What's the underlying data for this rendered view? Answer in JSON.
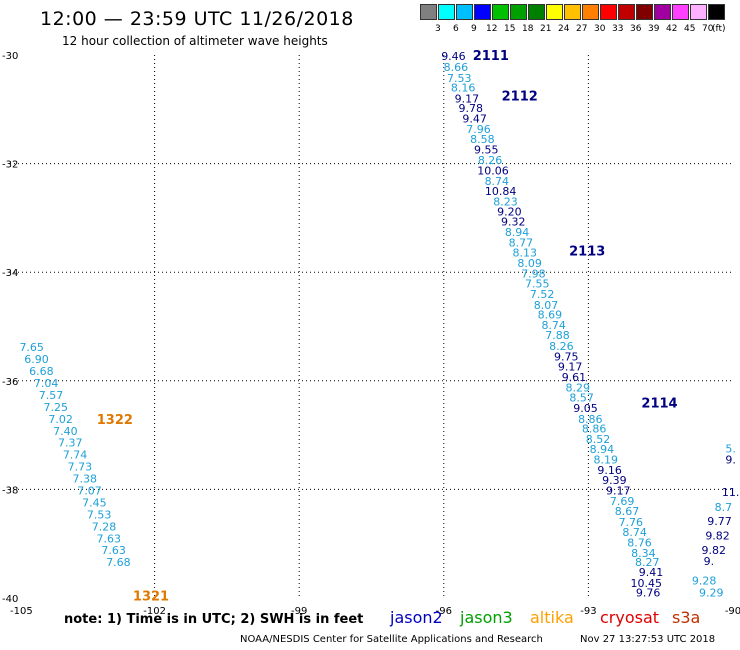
{
  "header": {
    "title": "12:00 — 23:59 UTC 11/26/2018",
    "subtitle": "12 hour collection of altimeter wave heights"
  },
  "legend": {
    "unit": "(ft)",
    "bins": [
      {
        "label": "3",
        "color": "#808080"
      },
      {
        "label": "6",
        "color": "#00ffff"
      },
      {
        "label": "9",
        "color": "#00bfff"
      },
      {
        "label": "12",
        "color": "#0000ff"
      },
      {
        "label": "15",
        "color": "#00c000"
      },
      {
        "label": "18",
        "color": "#00a000"
      },
      {
        "label": "21",
        "color": "#008000"
      },
      {
        "label": "24",
        "color": "#ffff00"
      },
      {
        "label": "27",
        "color": "#ffc000"
      },
      {
        "label": "30",
        "color": "#ff8000"
      },
      {
        "label": "33",
        "color": "#ff0000"
      },
      {
        "label": "36",
        "color": "#c00000"
      },
      {
        "label": "39",
        "color": "#800000"
      },
      {
        "label": "42",
        "color": "#a000a0"
      },
      {
        "label": "45",
        "color": "#ff40ff"
      },
      {
        "label": "70",
        "color": "#ffb0ff"
      },
      {
        "label": "",
        "color": "#000000"
      }
    ]
  },
  "map": {
    "lon_ticks": [
      "-105",
      "-102",
      "-99",
      "-96",
      "-93",
      "-90"
    ],
    "lat_ticks": [
      "-30",
      "-32",
      "-34",
      "-36",
      "-38",
      "-40"
    ],
    "lon_range": [
      -105,
      -90
    ],
    "lat_range": [
      -40,
      -30
    ],
    "grid": "dotted"
  },
  "tracks": [
    {
      "satellite": "jason2",
      "color_dark": "#000080",
      "color_light": "#1ea0d8",
      "passes": [
        {
          "label": "2111",
          "lon": -95.4,
          "lat": -30.0
        },
        {
          "label": "2112",
          "lon": -94.8,
          "lat": -30.75
        },
        {
          "label": "2113",
          "lon": -93.4,
          "lat": -33.6
        },
        {
          "label": "2114",
          "lon": -91.9,
          "lat": -36.4
        }
      ],
      "points": [
        {
          "v": "9.46",
          "lon": -95.8,
          "lat": -30.02,
          "d": 1
        },
        {
          "v": "8.66",
          "lon": -95.75,
          "lat": -30.22,
          "d": 0
        },
        {
          "v": "7.53",
          "lon": -95.68,
          "lat": -30.42,
          "d": 0
        },
        {
          "v": "8.16",
          "lon": -95.6,
          "lat": -30.6,
          "d": 0
        },
        {
          "v": "9.17",
          "lon": -95.52,
          "lat": -30.8,
          "d": 1
        },
        {
          "v": "9.78",
          "lon": -95.44,
          "lat": -30.98,
          "d": 1
        },
        {
          "v": "9.47",
          "lon": -95.36,
          "lat": -31.17,
          "d": 1
        },
        {
          "v": "7.96",
          "lon": -95.28,
          "lat": -31.36,
          "d": 0
        },
        {
          "v": "8.58",
          "lon": -95.2,
          "lat": -31.55,
          "d": 0
        },
        {
          "v": "9.55",
          "lon": -95.12,
          "lat": -31.74,
          "d": 1
        },
        {
          "v": "8.26",
          "lon": -95.04,
          "lat": -31.93,
          "d": 0
        },
        {
          "v": "10.06",
          "lon": -94.98,
          "lat": -32.13,
          "d": 1
        },
        {
          "v": "8.74",
          "lon": -94.9,
          "lat": -32.32,
          "d": 0
        },
        {
          "v": "10.84",
          "lon": -94.82,
          "lat": -32.5,
          "d": 1
        },
        {
          "v": "8.23",
          "lon": -94.72,
          "lat": -32.7,
          "d": 0
        },
        {
          "v": "9.20",
          "lon": -94.64,
          "lat": -32.88,
          "d": 1
        },
        {
          "v": "9.32",
          "lon": -94.56,
          "lat": -33.07,
          "d": 1
        },
        {
          "v": "8.94",
          "lon": -94.48,
          "lat": -33.26,
          "d": 0
        },
        {
          "v": "8.77",
          "lon": -94.4,
          "lat": -33.45,
          "d": 0
        },
        {
          "v": "8.13",
          "lon": -94.32,
          "lat": -33.64,
          "d": 0
        },
        {
          "v": "8.09",
          "lon": -94.22,
          "lat": -33.83,
          "d": 0
        },
        {
          "v": "7.98",
          "lon": -94.14,
          "lat": -34.02,
          "d": 0
        },
        {
          "v": "7.55",
          "lon": -94.06,
          "lat": -34.21,
          "d": 0
        },
        {
          "v": "7.52",
          "lon": -93.96,
          "lat": -34.4,
          "d": 0
        },
        {
          "v": "8.07",
          "lon": -93.88,
          "lat": -34.6,
          "d": 0
        },
        {
          "v": "8.69",
          "lon": -93.8,
          "lat": -34.78,
          "d": 0
        },
        {
          "v": "8.74",
          "lon": -93.72,
          "lat": -34.97,
          "d": 0
        },
        {
          "v": "7.88",
          "lon": -93.64,
          "lat": -35.16,
          "d": 0
        },
        {
          "v": "8.26",
          "lon": -93.56,
          "lat": -35.36,
          "d": 0
        },
        {
          "v": "9.75",
          "lon": -93.46,
          "lat": -35.55,
          "d": 1
        },
        {
          "v": "9.17",
          "lon": -93.38,
          "lat": -35.74,
          "d": 1
        },
        {
          "v": "9.61",
          "lon": -93.3,
          "lat": -35.93,
          "d": 1
        },
        {
          "v": "8.29",
          "lon": -93.22,
          "lat": -36.12,
          "d": 0
        },
        {
          "v": "8.57",
          "lon": -93.14,
          "lat": -36.31,
          "d": 0
        },
        {
          "v": "9.05",
          "lon": -93.06,
          "lat": -36.5,
          "d": 1
        },
        {
          "v": "8.86",
          "lon": -92.96,
          "lat": -36.7,
          "d": 0
        },
        {
          "v": "8.86",
          "lon": -92.88,
          "lat": -36.88,
          "d": 0
        },
        {
          "v": "8.52",
          "lon": -92.8,
          "lat": -37.07,
          "d": 0
        },
        {
          "v": "8.94",
          "lon": -92.72,
          "lat": -37.26,
          "d": 0
        },
        {
          "v": "8.19",
          "lon": -92.64,
          "lat": -37.45,
          "d": 0
        },
        {
          "v": "9.16",
          "lon": -92.56,
          "lat": -37.64,
          "d": 1
        },
        {
          "v": "9.39",
          "lon": -92.46,
          "lat": -37.83,
          "d": 1
        },
        {
          "v": "9.17",
          "lon": -92.38,
          "lat": -38.02,
          "d": 1
        },
        {
          "v": "7.69",
          "lon": -92.3,
          "lat": -38.21,
          "d": 0
        },
        {
          "v": "8.67",
          "lon": -92.2,
          "lat": -38.4,
          "d": 0
        },
        {
          "v": "7.76",
          "lon": -92.12,
          "lat": -38.6,
          "d": 0
        },
        {
          "v": "8.74",
          "lon": -92.04,
          "lat": -38.78,
          "d": 0
        },
        {
          "v": "8.76",
          "lon": -91.94,
          "lat": -38.98,
          "d": 0
        },
        {
          "v": "8.34",
          "lon": -91.86,
          "lat": -39.17,
          "d": 0
        },
        {
          "v": "8.27",
          "lon": -91.78,
          "lat": -39.34,
          "d": 0
        },
        {
          "v": "9.41",
          "lon": -91.7,
          "lat": -39.52,
          "d": 1
        },
        {
          "v": "10.45",
          "lon": -91.8,
          "lat": -39.72,
          "d": 1
        },
        {
          "v": "9.76",
          "lon": -91.76,
          "lat": -39.9,
          "d": 1
        },
        {
          "v": "5.",
          "lon": -90.05,
          "lat": -37.25,
          "d": 0
        },
        {
          "v": "9.",
          "lon": -90.05,
          "lat": -37.45,
          "d": 1
        },
        {
          "v": "11.",
          "lon": -90.05,
          "lat": -38.05,
          "d": 1
        },
        {
          "v": "8.7",
          "lon": -90.2,
          "lat": -38.32,
          "d": 0
        },
        {
          "v": "9.77",
          "lon": -90.28,
          "lat": -38.58,
          "d": 1
        },
        {
          "v": "9.82",
          "lon": -90.32,
          "lat": -38.85,
          "d": 1
        },
        {
          "v": "9.82",
          "lon": -90.4,
          "lat": -39.12,
          "d": 1
        },
        {
          "v": "9.",
          "lon": -90.5,
          "lat": -39.32,
          "d": 1
        },
        {
          "v": "9.28",
          "lon": -90.6,
          "lat": -39.68,
          "d": 0
        },
        {
          "v": "9.29",
          "lon": -90.45,
          "lat": -39.9,
          "d": 0
        }
      ]
    },
    {
      "satellite": "s3a",
      "color_dark": "#e07800",
      "color_light": "#1ea0d8",
      "passes": [
        {
          "label": "1322",
          "lon": -103.2,
          "lat": -36.7
        },
        {
          "label": "1321",
          "lon": -102.45,
          "lat": -39.95
        }
      ],
      "points": [
        {
          "v": "7.65",
          "lon": -104.55,
          "lat": -35.38,
          "d": 0
        },
        {
          "v": "6.90",
          "lon": -104.45,
          "lat": -35.6,
          "d": 0
        },
        {
          "v": "6.68",
          "lon": -104.35,
          "lat": -35.82,
          "d": 0
        },
        {
          "v": "7.04",
          "lon": -104.25,
          "lat": -36.04,
          "d": 0
        },
        {
          "v": "7.57",
          "lon": -104.15,
          "lat": -36.26,
          "d": 0
        },
        {
          "v": "7.25",
          "lon": -104.05,
          "lat": -36.48,
          "d": 0
        },
        {
          "v": "7.02",
          "lon": -103.95,
          "lat": -36.7,
          "d": 0
        },
        {
          "v": "7.40",
          "lon": -103.85,
          "lat": -36.92,
          "d": 0
        },
        {
          "v": "7.37",
          "lon": -103.75,
          "lat": -37.14,
          "d": 0
        },
        {
          "v": "7.74",
          "lon": -103.65,
          "lat": -37.36,
          "d": 0
        },
        {
          "v": "7.73",
          "lon": -103.55,
          "lat": -37.58,
          "d": 0
        },
        {
          "v": "7.38",
          "lon": -103.45,
          "lat": -37.8,
          "d": 0
        },
        {
          "v": "7.07",
          "lon": -103.35,
          "lat": -38.02,
          "d": 0
        },
        {
          "v": "7.45",
          "lon": -103.25,
          "lat": -38.24,
          "d": 0
        },
        {
          "v": "7.53",
          "lon": -103.15,
          "lat": -38.46,
          "d": 0
        },
        {
          "v": "7.28",
          "lon": -103.05,
          "lat": -38.68,
          "d": 0
        },
        {
          "v": "7.63",
          "lon": -102.95,
          "lat": -38.9,
          "d": 0
        },
        {
          "v": "7.63",
          "lon": -102.85,
          "lat": -39.12,
          "d": 0
        },
        {
          "v": "7.68",
          "lon": -102.75,
          "lat": -39.34,
          "d": 0
        }
      ]
    }
  ],
  "note": "note: 1) Time is in UTC; 2) SWH is in feet",
  "missions": [
    {
      "name": "jason2",
      "color": "#0000c0"
    },
    {
      "name": "jason3",
      "color": "#00a000"
    },
    {
      "name": "altika",
      "color": "#ffa000"
    },
    {
      "name": "cryosat",
      "color": "#e00000"
    },
    {
      "name": "s3a",
      "color": "#c03000"
    }
  ],
  "footer": {
    "credit": "NOAA/NESDIS Center for Satellite Applications and Research",
    "timestamp": "Nov 27 13:27:53 UTC 2018"
  }
}
